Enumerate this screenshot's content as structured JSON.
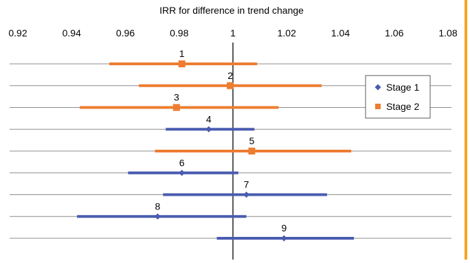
{
  "chart_data": {
    "type": "forest",
    "title": "IRR for difference in trend change",
    "xlim": [
      0.92,
      1.08
    ],
    "xticks": [
      "0.92",
      "0.94",
      "0.96",
      "0.98",
      "1",
      "1.02",
      "1.04",
      "1.06",
      "1.08"
    ],
    "reference_line": 1,
    "legend_position": "right",
    "series": [
      {
        "name": "Stage 1",
        "color": "#4A5CB0",
        "marker": "diamond"
      },
      {
        "name": "Stage 2",
        "color": "#ED7D31",
        "marker": "square"
      }
    ],
    "rows": [
      {
        "label": "1",
        "stage": "Stage 2",
        "estimate": 0.981,
        "lower": 0.954,
        "upper": 1.009
      },
      {
        "label": "2",
        "stage": "Stage 2",
        "estimate": 0.999,
        "lower": 0.965,
        "upper": 1.033
      },
      {
        "label": "3",
        "stage": "Stage 2",
        "estimate": 0.979,
        "lower": 0.943,
        "upper": 1.017
      },
      {
        "label": "4",
        "stage": "Stage 1",
        "estimate": 0.991,
        "lower": 0.975,
        "upper": 1.008
      },
      {
        "label": "5",
        "stage": "Stage 2",
        "estimate": 1.007,
        "lower": 0.971,
        "upper": 1.044
      },
      {
        "label": "6",
        "stage": "Stage 1",
        "estimate": 0.981,
        "lower": 0.961,
        "upper": 1.002
      },
      {
        "label": "7",
        "stage": "Stage 1",
        "estimate": 1.005,
        "lower": 0.974,
        "upper": 1.035
      },
      {
        "label": "8",
        "stage": "Stage 1",
        "estimate": 0.972,
        "lower": 0.942,
        "upper": 1.005
      },
      {
        "label": "9",
        "stage": "Stage 1",
        "estimate": 1.019,
        "lower": 0.994,
        "upper": 1.045
      }
    ]
  }
}
